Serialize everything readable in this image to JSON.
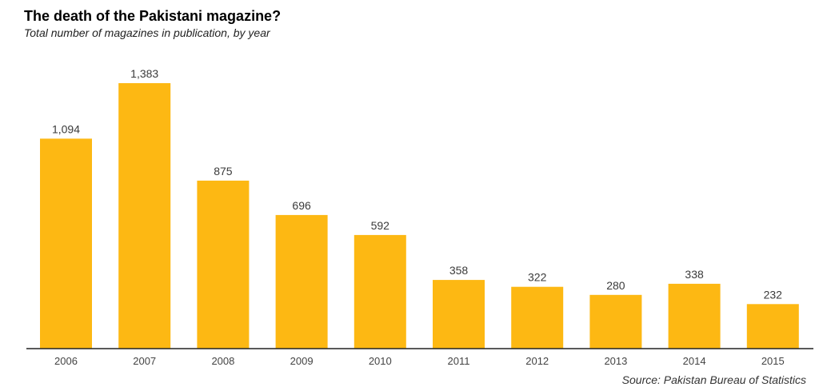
{
  "chart_data": {
    "type": "bar",
    "title": "The death of the Pakistani magazine?",
    "subtitle": "Total number of magazines in publication, by year",
    "source": "Source: Pakistan Bureau of Statistics",
    "categories": [
      "2006",
      "2007",
      "2008",
      "2009",
      "2010",
      "2011",
      "2012",
      "2013",
      "2014",
      "2015"
    ],
    "values": [
      1094,
      1383,
      875,
      696,
      592,
      358,
      322,
      280,
      338,
      232
    ],
    "value_labels": [
      "1,094",
      "1,383",
      "875",
      "696",
      "592",
      "358",
      "322",
      "280",
      "338",
      "232"
    ],
    "xlabel": "",
    "ylabel": "",
    "ylim": [
      0,
      1383
    ],
    "bar_color": "#FDB813",
    "axis_color": "#222222",
    "grid": false,
    "legend": "none"
  }
}
